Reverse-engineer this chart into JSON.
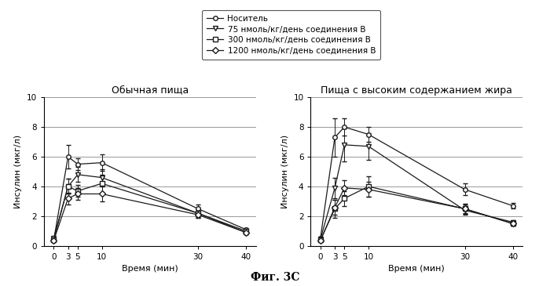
{
  "time_points": [
    0,
    3,
    5,
    10,
    30,
    40
  ],
  "left_title": "Обычная пища",
  "right_title": "Пища с высоким содержанием жира",
  "ylabel": "Инсулин (мкг/л)",
  "xlabel": "Время (мин)",
  "fig_title": "Фиг. 3С",
  "ylim": [
    0,
    10
  ],
  "yticks": [
    0,
    2,
    4,
    6,
    8,
    10
  ],
  "xticks": [
    0,
    3,
    5,
    10,
    30,
    40
  ],
  "legend_labels": [
    "Носитель",
    "75 нмоль/кг/день соединения В",
    "300 нмоль/кг/день соединения В",
    "1200 нмоль/кг/день соединения В"
  ],
  "left": {
    "carrier": {
      "y": [
        0.35,
        6.0,
        5.5,
        5.6,
        2.5,
        1.1
      ],
      "yerr": [
        0.05,
        0.8,
        0.4,
        0.55,
        0.3,
        0.1
      ]
    },
    "dose75": {
      "y": [
        0.5,
        4.0,
        4.8,
        4.6,
        2.2,
        0.9
      ],
      "yerr": [
        0.05,
        0.5,
        0.5,
        0.55,
        0.25,
        0.1
      ]
    },
    "dose300": {
      "y": [
        0.4,
        4.0,
        3.7,
        4.2,
        2.2,
        1.0
      ],
      "yerr": [
        0.05,
        0.5,
        0.4,
        0.6,
        0.3,
        0.1
      ]
    },
    "dose1200": {
      "y": [
        0.35,
        3.2,
        3.5,
        3.5,
        2.1,
        0.9
      ],
      "yerr": [
        0.05,
        0.4,
        0.4,
        0.5,
        0.2,
        0.1
      ]
    }
  },
  "right": {
    "carrier": {
      "y": [
        0.5,
        7.3,
        8.0,
        7.5,
        3.8,
        2.7
      ],
      "yerr": [
        0.05,
        1.3,
        0.6,
        0.5,
        0.4,
        0.2
      ]
    },
    "dose75": {
      "y": [
        0.45,
        3.9,
        6.8,
        6.7,
        2.4,
        1.6
      ],
      "yerr": [
        0.05,
        0.7,
        1.1,
        0.9,
        0.3,
        0.15
      ]
    },
    "dose300": {
      "y": [
        0.4,
        2.5,
        3.2,
        4.0,
        2.5,
        1.5
      ],
      "yerr": [
        0.05,
        0.6,
        0.5,
        0.7,
        0.35,
        0.15
      ]
    },
    "dose1200": {
      "y": [
        0.35,
        2.6,
        3.9,
        3.8,
        2.5,
        1.5
      ],
      "yerr": [
        0.05,
        0.5,
        0.5,
        0.5,
        0.3,
        0.15
      ]
    }
  },
  "markers": [
    "o",
    "v",
    "s",
    "D"
  ],
  "line_color": "#1a1a1a",
  "marker_size": 4,
  "font_size_title": 9,
  "font_size_label": 8,
  "font_size_tick": 7.5,
  "font_size_legend": 7.5,
  "font_size_fig_title": 10,
  "grid_color": "#999999",
  "background_color": "#ffffff"
}
